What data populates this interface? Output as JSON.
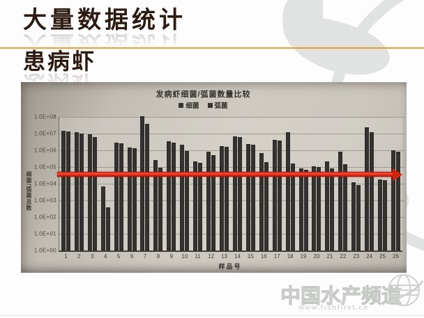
{
  "slide": {
    "title_line1": "大量数据统计",
    "title_line2": "患病虾",
    "accent_color": "#E59D33"
  },
  "watermark": {
    "brand": "中国水产频道",
    "url": "www.fishfirst.cn"
  },
  "chart_data": {
    "type": "bar",
    "title": "发病虾细菌/弧菌数量比较",
    "xlabel": "样品号",
    "ylabel": "细菌/弧菌总数",
    "y_scale": "log",
    "ylim": [
      1,
      100000000
    ],
    "y_ticks": [
      "1.0E+08",
      "1.0E+07",
      "1.0E+06",
      "1.0E+05",
      "1.0E+04",
      "1.0E+03",
      "1.0E+02",
      "1.0E+01",
      "1.0E+00"
    ],
    "grid": true,
    "legend_position": "top",
    "bar_color": "#373532",
    "categories": [
      "1",
      "2",
      "3",
      "4",
      "5",
      "6",
      "7",
      "8",
      "9",
      "10",
      "11",
      "12",
      "13",
      "14",
      "15",
      "16",
      "17",
      "18",
      "19",
      "20",
      "21",
      "22",
      "23",
      "24",
      "25",
      "26"
    ],
    "series": [
      {
        "name": "细菌",
        "values": [
          15000000,
          12000000,
          9000000,
          7000,
          3000000,
          1500000,
          110000000,
          260000,
          3400000,
          2200000,
          220000,
          800000,
          1800000,
          7000000,
          2400000,
          700000,
          4400000,
          12000000,
          80000,
          110000,
          220000,
          800000,
          12000,
          24000000,
          18000,
          1000000
        ]
      },
      {
        "name": "弧菌",
        "values": [
          13000000,
          10000000,
          6000000,
          400,
          2500000,
          1300000,
          40000000,
          90000,
          3000000,
          900000,
          180000,
          500000,
          1600000,
          6000000,
          2200000,
          200000,
          4000000,
          160000,
          70000,
          100000,
          80000,
          150000,
          8000,
          12000000,
          16000,
          800000
        ]
      }
    ],
    "annotation": {
      "shape": "horizontal-arrow",
      "y_value": 40000,
      "color": "#DF2310",
      "direction": "right"
    }
  }
}
